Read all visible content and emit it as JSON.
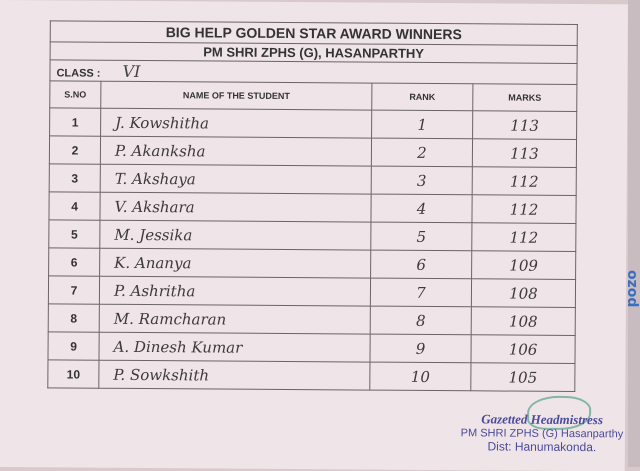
{
  "title": "BIG HELP  GOLDEN STAR AWARD WINNERS",
  "school": "PM SHRI ZPHS (G), HASANPARTHY",
  "class_label": "CLASS :",
  "class_value": "VI",
  "headers": [
    "S.NO",
    "NAME OF THE STUDENT",
    "RANK",
    "MARKS"
  ],
  "rows": [
    {
      "sno": "1",
      "name": "J. Kowshitha",
      "rank": "1",
      "marks": "113"
    },
    {
      "sno": "2",
      "name": "P. Akanksha",
      "rank": "2",
      "marks": "113"
    },
    {
      "sno": "3",
      "name": "T. Akshaya",
      "rank": "3",
      "marks": "112"
    },
    {
      "sno": "4",
      "name": "V. Akshara",
      "rank": "4",
      "marks": "112"
    },
    {
      "sno": "5",
      "name": "M. Jessika",
      "rank": "5",
      "marks": "112"
    },
    {
      "sno": "6",
      "name": "K. Ananya",
      "rank": "6",
      "marks": "109"
    },
    {
      "sno": "7",
      "name": "P. Ashritha",
      "rank": "7",
      "marks": "108"
    },
    {
      "sno": "8",
      "name": "M. Ramcharan",
      "rank": "8",
      "marks": "108"
    },
    {
      "sno": "9",
      "name": "A. Dinesh Kumar",
      "rank": "9",
      "marks": "106"
    },
    {
      "sno": "10",
      "name": "P. Sowkshith",
      "rank": "10",
      "marks": "105"
    }
  ],
  "stamp": {
    "line1": "Gazetted Headmistress",
    "line2": "PM SHRI ZPHS (G) Hasanparthy",
    "line3": "Dist: Hanumakonda."
  },
  "edge_brand": "pozo"
}
